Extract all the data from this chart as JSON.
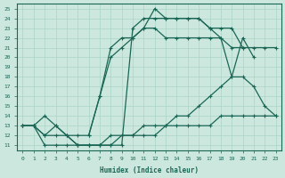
{
  "xlabel": "Humidex (Indice chaleur)",
  "bg_color": "#cce8de",
  "line_color": "#1a6655",
  "grid_color": "#aad4c8",
  "xlim": [
    -0.5,
    23.5
  ],
  "ylim": [
    10.5,
    25.5
  ],
  "xticks": [
    0,
    1,
    2,
    3,
    4,
    5,
    6,
    7,
    8,
    9,
    10,
    11,
    12,
    13,
    14,
    15,
    16,
    17,
    18,
    19,
    20,
    21,
    22,
    23
  ],
  "yticks": [
    11,
    12,
    13,
    14,
    15,
    16,
    17,
    18,
    19,
    20,
    21,
    22,
    23,
    24,
    25
  ],
  "line_top_x": [
    0,
    1,
    2,
    3,
    4,
    5,
    6,
    7,
    8,
    9,
    10,
    11,
    12,
    13,
    14,
    15,
    16,
    17,
    18,
    19,
    20,
    21,
    22,
    23
  ],
  "line_top_y": [
    13,
    13,
    14,
    13,
    12,
    11,
    11,
    11,
    11,
    11,
    23,
    24,
    24,
    24,
    24,
    24,
    24,
    23,
    23,
    23,
    21,
    21,
    21,
    21
  ],
  "line_steep_x": [
    0,
    1,
    2,
    3,
    4,
    5,
    6,
    7,
    8,
    9,
    10,
    11,
    12,
    13,
    14,
    15,
    16,
    17,
    18,
    19,
    20
  ],
  "line_steep_y": [
    13,
    13,
    12,
    13,
    12,
    12,
    12,
    16,
    20,
    21,
    22,
    23,
    23,
    22,
    22,
    22,
    22,
    22,
    22,
    21,
    21
  ],
  "line_diag1_x": [
    0,
    1,
    2,
    3,
    4,
    5,
    6,
    7,
    8,
    9,
    10,
    11,
    12,
    13,
    14,
    15,
    16,
    17,
    18,
    19,
    20,
    21,
    22,
    23
  ],
  "line_diag1_y": [
    13,
    13,
    12,
    12,
    12,
    11,
    11,
    11,
    12,
    12,
    12,
    13,
    13,
    13,
    14,
    14,
    15,
    16,
    17,
    18,
    18,
    17,
    15,
    14
  ],
  "line_diag2_x": [
    0,
    1,
    2,
    3,
    4,
    5,
    6,
    7,
    8,
    9,
    10,
    11,
    12,
    13,
    14,
    15,
    16,
    17,
    18,
    19,
    20,
    21,
    22,
    23
  ],
  "line_diag2_y": [
    13,
    13,
    11,
    11,
    11,
    11,
    11,
    11,
    11,
    12,
    12,
    12,
    12,
    13,
    13,
    13,
    13,
    13,
    14,
    14,
    14,
    14,
    14,
    14
  ],
  "line_peak_x": [
    6,
    7,
    8,
    9,
    10,
    11,
    12,
    13,
    14,
    15,
    16,
    17,
    18,
    19,
    20,
    21
  ],
  "line_peak_y": [
    12,
    16,
    21,
    22,
    22,
    23,
    25,
    24,
    24,
    24,
    24,
    23,
    22,
    18,
    22,
    20
  ]
}
